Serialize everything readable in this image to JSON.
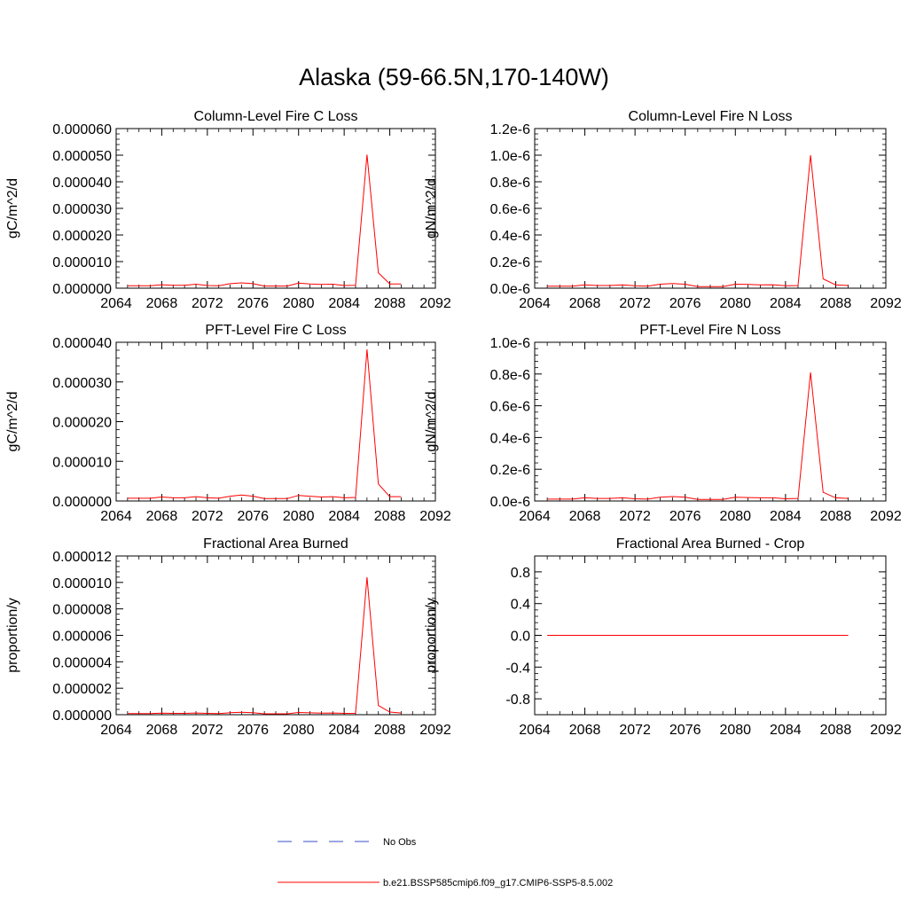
{
  "title": "Alaska (59-66.5N,170-140W)",
  "colors": {
    "model": "#ff0000",
    "obs": "#3a4fc8",
    "axis": "#000000"
  },
  "legend": {
    "items": [
      {
        "label": "No Obs",
        "style": "dashed",
        "color": "#3a4fc8"
      },
      {
        "label": "b.e21.BSSP585cmip6.f09_g17.CMIP6-SSP5-8.5.002",
        "style": "solid",
        "color": "#ff0000"
      }
    ]
  },
  "chart_data": [
    {
      "type": "line",
      "title": "Column-Level Fire C Loss",
      "xlabel": "",
      "ylabel": "gC/m^2/d",
      "xlim": [
        2064,
        2092
      ],
      "ylim": [
        0,
        6e-05
      ],
      "xticks": [
        2064,
        2068,
        2072,
        2076,
        2080,
        2084,
        2088,
        2092
      ],
      "xtick_labels": [
        "2064",
        "2068",
        "2072",
        "2076",
        "2080",
        "2084",
        "2088",
        "2092"
      ],
      "yticks": [
        0,
        1e-05,
        2e-05,
        3e-05,
        4e-05,
        5e-05,
        6e-05
      ],
      "ytick_labels": [
        "0.000000",
        "0.000010",
        "0.000020",
        "0.000030",
        "0.000040",
        "0.000050",
        "0.000060"
      ],
      "x": [
        2065,
        2066,
        2067,
        2068,
        2069,
        2070,
        2071,
        2072,
        2073,
        2074,
        2075,
        2076,
        2077,
        2078,
        2079,
        2080,
        2081,
        2082,
        2083,
        2084,
        2085,
        2086,
        2087,
        2088,
        2089
      ],
      "series": [
        {
          "name": "b.e21.BSSP585cmip6.f09_g17.CMIP6-SSP5-8.5.002",
          "values": [
            9e-07,
            9e-07,
            9e-07,
            1.3e-06,
            1.1e-06,
            1.1e-06,
            1.5e-06,
            1e-06,
            9e-07,
            1.7e-06,
            2e-06,
            1.7e-06,
            8e-07,
            8e-07,
            8e-07,
            1.9e-06,
            1.6e-06,
            1.4e-06,
            1.5e-06,
            1e-06,
            1.1e-06,
            5.02e-05,
            5.8e-06,
            1.6e-06,
            1.6e-06
          ]
        }
      ]
    },
    {
      "type": "line",
      "title": "Column-Level Fire N Loss",
      "xlabel": "",
      "ylabel": "gN/m^2/d",
      "xlim": [
        2064,
        2092
      ],
      "ylim": [
        0,
        1.2e-06
      ],
      "xticks": [
        2064,
        2068,
        2072,
        2076,
        2080,
        2084,
        2088,
        2092
      ],
      "xtick_labels": [
        "2064",
        "2068",
        "2072",
        "2076",
        "2080",
        "2084",
        "2088",
        "2092"
      ],
      "yticks": [
        0,
        2e-07,
        4e-07,
        6e-07,
        8e-07,
        1e-06,
        1.2e-06
      ],
      "ytick_labels": [
        "0.0e-6",
        "0.2e-6",
        "0.4e-6",
        "0.6e-6",
        "0.8e-6",
        "1.0e-6",
        "1.2e-6"
      ],
      "x": [
        2065,
        2066,
        2067,
        2068,
        2069,
        2070,
        2071,
        2072,
        2073,
        2074,
        2075,
        2076,
        2077,
        2078,
        2079,
        2080,
        2081,
        2082,
        2083,
        2084,
        2085,
        2086,
        2087,
        2088,
        2089
      ],
      "series": [
        {
          "name": "b.e21.BSSP585cmip6.f09_g17.CMIP6-SSP5-8.5.002",
          "values": [
            1.5e-08,
            1.5e-08,
            1.5e-08,
            2.5e-08,
            2e-08,
            2e-08,
            2.5e-08,
            1.8e-08,
            1.5e-08,
            3e-08,
            3.5e-08,
            3e-08,
            1.2e-08,
            1.2e-08,
            1.2e-08,
            3e-08,
            2.8e-08,
            2.5e-08,
            2.6e-08,
            1.8e-08,
            2e-08,
            1e-06,
            7e-08,
            2.5e-08,
            2e-08
          ]
        }
      ]
    },
    {
      "type": "line",
      "title": "PFT-Level Fire C Loss",
      "xlabel": "",
      "ylabel": "gC/m^2/d",
      "xlim": [
        2064,
        2092
      ],
      "ylim": [
        0,
        4e-05
      ],
      "xticks": [
        2064,
        2068,
        2072,
        2076,
        2080,
        2084,
        2088,
        2092
      ],
      "xtick_labels": [
        "2064",
        "2068",
        "2072",
        "2076",
        "2080",
        "2084",
        "2088",
        "2092"
      ],
      "yticks": [
        0,
        1e-05,
        2e-05,
        3e-05,
        4e-05
      ],
      "ytick_labels": [
        "0.000000",
        "0.000010",
        "0.000020",
        "0.000030",
        "0.000040"
      ],
      "x": [
        2065,
        2066,
        2067,
        2068,
        2069,
        2070,
        2071,
        2072,
        2073,
        2074,
        2075,
        2076,
        2077,
        2078,
        2079,
        2080,
        2081,
        2082,
        2083,
        2084,
        2085,
        2086,
        2087,
        2088,
        2089
      ],
      "series": [
        {
          "name": "b.e21.BSSP585cmip6.f09_g17.CMIP6-SSP5-8.5.002",
          "values": [
            7e-07,
            7e-07,
            7e-07,
            1e-06,
            8e-07,
            8e-07,
            1.1e-06,
            8e-07,
            7e-07,
            1.2e-06,
            1.5e-06,
            1.2e-06,
            6e-07,
            6e-07,
            6e-07,
            1.4e-06,
            1.2e-06,
            1e-06,
            1.1e-06,
            8e-07,
            9e-07,
            3.82e-05,
            4.3e-06,
            1.1e-06,
            1.1e-06
          ]
        }
      ]
    },
    {
      "type": "line",
      "title": "PFT-Level Fire N Loss",
      "xlabel": "",
      "ylabel": "gN/m^2/d",
      "xlim": [
        2064,
        2092
      ],
      "ylim": [
        0,
        1e-06
      ],
      "xticks": [
        2064,
        2068,
        2072,
        2076,
        2080,
        2084,
        2088,
        2092
      ],
      "xtick_labels": [
        "2064",
        "2068",
        "2072",
        "2076",
        "2080",
        "2084",
        "2088",
        "2092"
      ],
      "yticks": [
        0,
        2e-07,
        4e-07,
        6e-07,
        8e-07,
        1e-06
      ],
      "ytick_labels": [
        "0.0e-6",
        "0.2e-6",
        "0.4e-6",
        "0.6e-6",
        "0.8e-6",
        "1.0e-6"
      ],
      "x": [
        2065,
        2066,
        2067,
        2068,
        2069,
        2070,
        2071,
        2072,
        2073,
        2074,
        2075,
        2076,
        2077,
        2078,
        2079,
        2080,
        2081,
        2082,
        2083,
        2084,
        2085,
        2086,
        2087,
        2088,
        2089
      ],
      "series": [
        {
          "name": "b.e21.BSSP585cmip6.f09_g17.CMIP6-SSP5-8.5.002",
          "values": [
            1.2e-08,
            1.2e-08,
            1.2e-08,
            2e-08,
            1.6e-08,
            1.6e-08,
            2e-08,
            1.4e-08,
            1.2e-08,
            2.4e-08,
            2.8e-08,
            2.4e-08,
            1e-08,
            1e-08,
            1e-08,
            2.4e-08,
            2.2e-08,
            2e-08,
            2e-08,
            1.4e-08,
            1.6e-08,
            8.1e-07,
            5.5e-08,
            2e-08,
            1.6e-08
          ]
        }
      ]
    },
    {
      "type": "line",
      "title": "Fractional Area Burned",
      "xlabel": "",
      "ylabel": "proportion/y",
      "xlim": [
        2064,
        2092
      ],
      "ylim": [
        0,
        1.2e-05
      ],
      "xticks": [
        2064,
        2068,
        2072,
        2076,
        2080,
        2084,
        2088,
        2092
      ],
      "xtick_labels": [
        "2064",
        "2068",
        "2072",
        "2076",
        "2080",
        "2084",
        "2088",
        "2092"
      ],
      "yticks": [
        0,
        2e-06,
        4e-06,
        6e-06,
        8e-06,
        1e-05,
        1.2e-05
      ],
      "ytick_labels": [
        "0.000000",
        "0.000002",
        "0.000004",
        "0.000006",
        "0.000008",
        "0.000010",
        "0.000012"
      ],
      "x": [
        2065,
        2066,
        2067,
        2068,
        2069,
        2070,
        2071,
        2072,
        2073,
        2074,
        2075,
        2076,
        2077,
        2078,
        2079,
        2080,
        2081,
        2082,
        2083,
        2084,
        2085,
        2086,
        2087,
        2088,
        2089
      ],
      "series": [
        {
          "name": "b.e21.BSSP585cmip6.f09_g17.CMIP6-SSP5-8.5.002",
          "values": [
            8e-08,
            8e-08,
            8e-08,
            1.2e-07,
            1e-07,
            1e-07,
            1.3e-07,
            1e-07,
            8e-08,
            1.5e-07,
            1.9e-07,
            1.5e-07,
            7e-08,
            7e-08,
            7e-08,
            1.7e-07,
            1.4e-07,
            1.2e-07,
            1.3e-07,
            1e-07,
            1.1e-07,
            1.04e-05,
            7e-07,
            2e-07,
            1.3e-07
          ]
        }
      ]
    },
    {
      "type": "line",
      "title": "Fractional Area Burned - Crop",
      "xlabel": "",
      "ylabel": "proportion/y",
      "xlim": [
        2064,
        2092
      ],
      "ylim": [
        -1.0,
        1.0
      ],
      "xticks": [
        2064,
        2068,
        2072,
        2076,
        2080,
        2084,
        2088,
        2092
      ],
      "xtick_labels": [
        "2064",
        "2068",
        "2072",
        "2076",
        "2080",
        "2084",
        "2088",
        "2092"
      ],
      "yticks": [
        -0.8,
        -0.4,
        0.0,
        0.4,
        0.8
      ],
      "ytick_labels": [
        "-0.8",
        "-0.4",
        "0.0",
        "0.4",
        "0.8"
      ],
      "x": [
        2065,
        2066,
        2067,
        2068,
        2069,
        2070,
        2071,
        2072,
        2073,
        2074,
        2075,
        2076,
        2077,
        2078,
        2079,
        2080,
        2081,
        2082,
        2083,
        2084,
        2085,
        2086,
        2087,
        2088,
        2089
      ],
      "series": [
        {
          "name": "b.e21.BSSP585cmip6.f09_g17.CMIP6-SSP5-8.5.002",
          "values": [
            0,
            0,
            0,
            0,
            0,
            0,
            0,
            0,
            0,
            0,
            0,
            0,
            0,
            0,
            0,
            0,
            0,
            0,
            0,
            0,
            0,
            0,
            0,
            0,
            0
          ]
        }
      ]
    }
  ]
}
